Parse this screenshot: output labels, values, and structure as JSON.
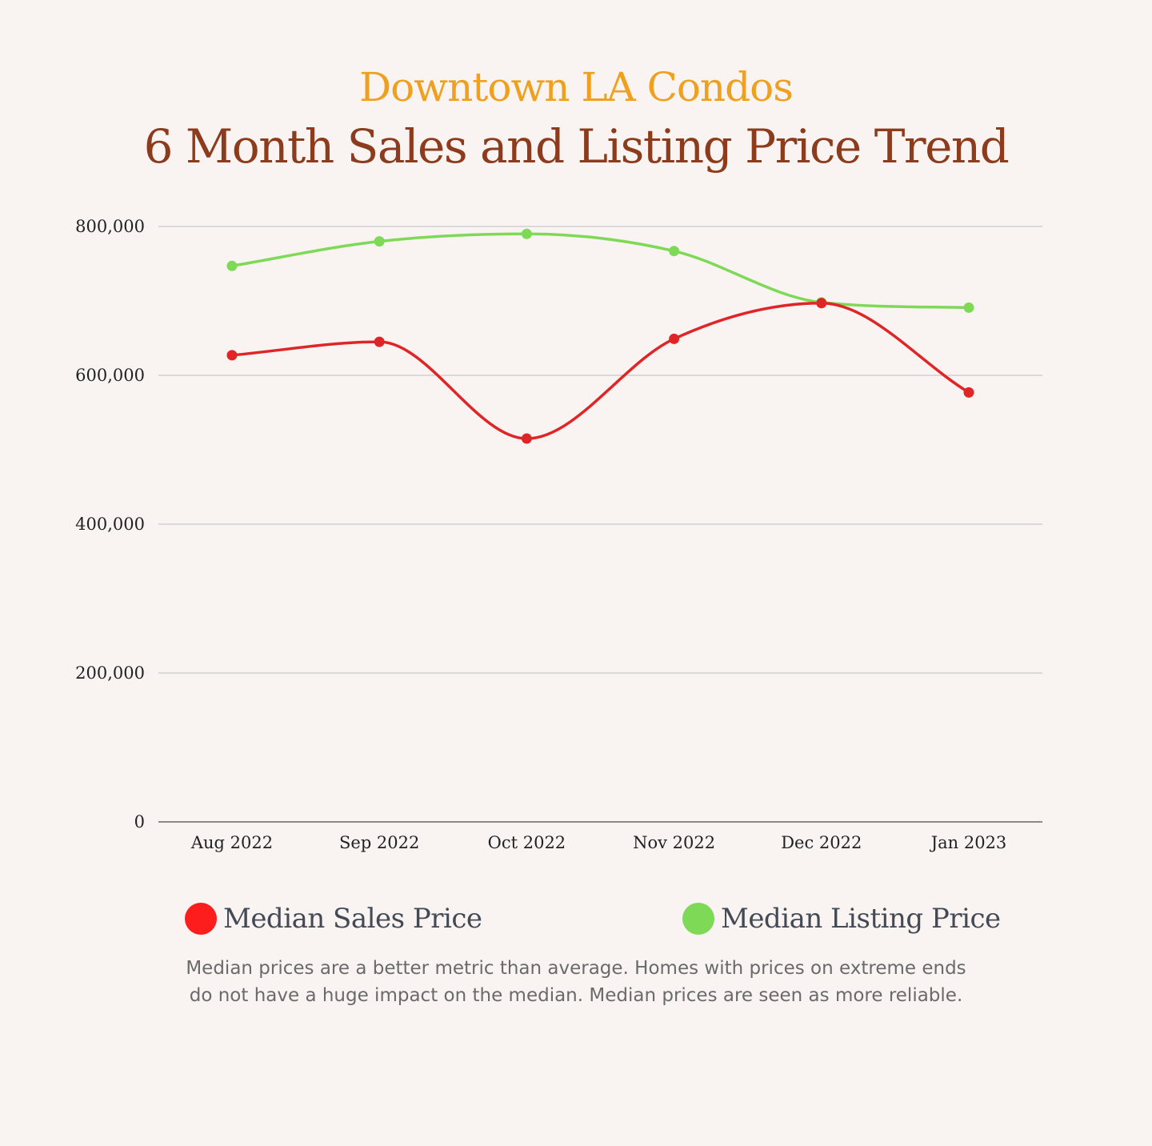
{
  "header": {
    "subtitle": "Downtown LA Condos",
    "title": "6 Month Sales and Listing Price Trend"
  },
  "chart_data": {
    "type": "line",
    "smooth": true,
    "categories": [
      "Aug 2022",
      "Sep 2022",
      "Oct 2022",
      "Nov 2022",
      "Dec 2022",
      "Jan 2023"
    ],
    "y_ticks": [
      0,
      200000,
      400000,
      600000,
      800000
    ],
    "y_tick_labels": [
      "0",
      "200,000",
      "400,000",
      "600,000",
      "800,000"
    ],
    "ylim": [
      0,
      800000
    ],
    "grid": true,
    "legend_position": "bottom",
    "series": [
      {
        "name": "Median Sales Price",
        "color": "#e02527",
        "values": [
          627000,
          645000,
          515000,
          649000,
          697000,
          577000
        ]
      },
      {
        "name": "Median Listing Price",
        "color": "#7ed957",
        "values": [
          747000,
          780000,
          790000,
          767000,
          698000,
          691000
        ]
      }
    ]
  },
  "legend": {
    "sales": {
      "label": "Median Sales Price",
      "color": "#fd1d1d"
    },
    "listing": {
      "label": "Median Listing Price",
      "color": "#7ed957"
    }
  },
  "footnote": {
    "line1": "Median prices are a better metric than average. Homes with prices on extreme ends",
    "line2": "do not have a huge impact on the median. Median prices are seen as more reliable."
  }
}
